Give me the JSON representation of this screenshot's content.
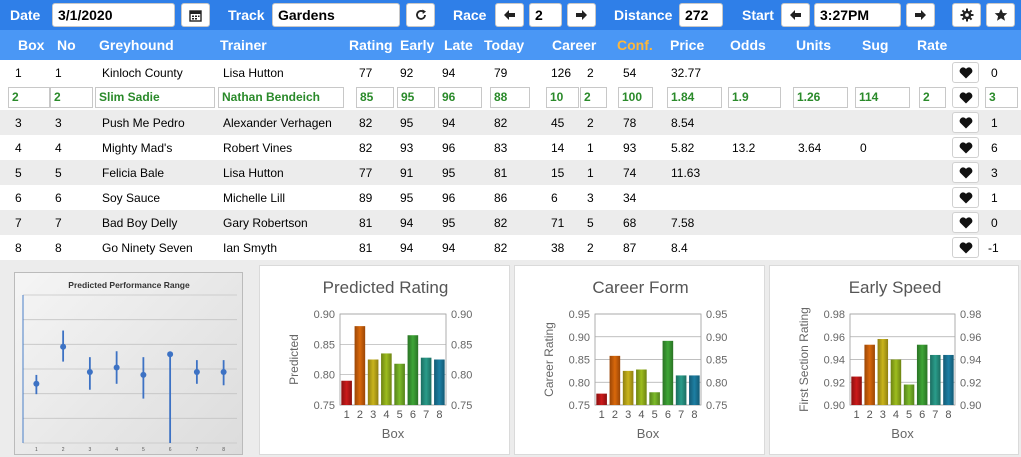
{
  "topbar": {
    "date_label": "Date",
    "date_value": "3/1/2020",
    "calendar_icon": "calendar-icon",
    "track_label": "Track",
    "track_value": "Gardens",
    "refresh_icon": "refresh-icon",
    "race_label": "Race",
    "race_value": "2",
    "distance_label": "Distance",
    "distance_value": "272",
    "start_label": "Start",
    "start_value": "3:27PM",
    "settings_icon": "gear-icon",
    "favorite_icon": "star-icon"
  },
  "columns": [
    "Box",
    "No",
    "Greyhound",
    "Trainer",
    "Rating",
    "Early",
    "Late",
    "Today",
    "Career",
    "Conf.",
    "Price",
    "Odds",
    "Units",
    "Sug",
    "Rate"
  ],
  "rows": [
    {
      "box": "1",
      "no": "1",
      "greyhound": "Kinloch County",
      "trainer": "Lisa Hutton",
      "rating": "77",
      "early": "92",
      "late": "94",
      "today": "79",
      "career": "126",
      "career2": "2",
      "conf": "54",
      "price": "32.77",
      "odds": "",
      "units": "",
      "sug": "",
      "rate": "",
      "count": "0"
    },
    {
      "box": "2",
      "no": "2",
      "greyhound": "Slim Sadie",
      "trainer": "Nathan Bendeich",
      "rating": "85",
      "early": "95",
      "late": "96",
      "today": "88",
      "career": "10",
      "career2": "2",
      "conf": "100",
      "price": "1.84",
      "odds": "1.9",
      "units": "1.26",
      "sug": "114",
      "rate": "2",
      "count": "3"
    },
    {
      "box": "3",
      "no": "3",
      "greyhound": "Push Me Pedro",
      "trainer": "Alexander Verhagen",
      "rating": "82",
      "early": "95",
      "late": "94",
      "today": "82",
      "career": "45",
      "career2": "2",
      "conf": "78",
      "price": "8.54",
      "odds": "",
      "units": "",
      "sug": "",
      "rate": "",
      "count": "1"
    },
    {
      "box": "4",
      "no": "4",
      "greyhound": "Mighty Mad's",
      "trainer": "Robert Vines",
      "rating": "82",
      "early": "93",
      "late": "96",
      "today": "83",
      "career": "14",
      "career2": "1",
      "conf": "93",
      "price": "5.82",
      "odds": "13.2",
      "units": "3.64",
      "sug": "0",
      "rate": "",
      "count": "6"
    },
    {
      "box": "5",
      "no": "5",
      "greyhound": "Felicia Bale",
      "trainer": "Lisa Hutton",
      "rating": "77",
      "early": "91",
      "late": "95",
      "today": "81",
      "career": "15",
      "career2": "1",
      "conf": "74",
      "price": "11.63",
      "odds": "",
      "units": "",
      "sug": "",
      "rate": "",
      "count": "3"
    },
    {
      "box": "6",
      "no": "6",
      "greyhound": "Soy Sauce",
      "trainer": "Michelle Lill",
      "rating": "89",
      "early": "95",
      "late": "96",
      "today": "86",
      "career": "6",
      "career2": "3",
      "conf": "34",
      "price": "",
      "odds": "",
      "units": "",
      "sug": "",
      "rate": "",
      "count": "1"
    },
    {
      "box": "7",
      "no": "7",
      "greyhound": "Bad Boy Delly",
      "trainer": "Gary Robertson",
      "rating": "81",
      "early": "94",
      "late": "95",
      "today": "82",
      "career": "71",
      "career2": "5",
      "conf": "68",
      "price": "7.58",
      "odds": "",
      "units": "",
      "sug": "",
      "rate": "",
      "count": "0"
    },
    {
      "box": "8",
      "no": "8",
      "greyhound": "Go Ninety Seven",
      "trainer": "Ian Smyth",
      "rating": "81",
      "early": "94",
      "late": "94",
      "today": "82",
      "career": "38",
      "career2": "2",
      "conf": "87",
      "price": "8.4",
      "odds": "",
      "units": "",
      "sug": "",
      "rate": "",
      "count": "-1"
    }
  ],
  "heart_icon": "heart-icon",
  "colors": {
    "topbar": "#2f7fe8",
    "header": "#4a97f5",
    "conf_header": "#ffb739",
    "selected_text": "#2a8a2a"
  },
  "chart_data": [
    {
      "type": "scatter",
      "title": "Predicted Performance Range",
      "categories": [
        "1",
        "2",
        "3",
        "4",
        "5",
        "6",
        "7",
        "8"
      ],
      "values": [
        0.4,
        0.65,
        0.48,
        0.51,
        0.46,
        0.6,
        0.48,
        0.48
      ],
      "range_low": [
        0.33,
        0.55,
        0.36,
        0.4,
        0.3,
        0.0,
        0.4,
        0.39
      ],
      "range_high": [
        0.46,
        0.76,
        0.58,
        0.62,
        0.58,
        0.6,
        0.56,
        0.56
      ],
      "ylim": [
        0,
        1
      ]
    },
    {
      "type": "bar",
      "title": "Predicted Rating",
      "categories": [
        "1",
        "2",
        "3",
        "4",
        "5",
        "6",
        "7",
        "8"
      ],
      "values": [
        0.79,
        0.88,
        0.825,
        0.835,
        0.818,
        0.865,
        0.828,
        0.825
      ],
      "xlabel": "Box",
      "ylabel": "Predicted",
      "ylim": [
        0.75,
        0.9
      ],
      "yticks": [
        "0.75",
        "0.80",
        "0.85",
        "0.90"
      ]
    },
    {
      "type": "bar",
      "title": "Career Form",
      "categories": [
        "1",
        "2",
        "3",
        "4",
        "5",
        "6",
        "7",
        "8"
      ],
      "values": [
        0.775,
        0.858,
        0.825,
        0.828,
        0.778,
        0.891,
        0.815,
        0.815
      ],
      "xlabel": "Box",
      "ylabel": "Career Rating",
      "ylim": [
        0.75,
        0.95
      ],
      "yticks": [
        "0.75",
        "0.80",
        "0.85",
        "0.90",
        "0.95"
      ]
    },
    {
      "type": "bar",
      "title": "Early Speed",
      "categories": [
        "1",
        "2",
        "3",
        "4",
        "5",
        "6",
        "7",
        "8"
      ],
      "values": [
        0.925,
        0.953,
        0.958,
        0.94,
        0.918,
        0.953,
        0.944,
        0.944
      ],
      "xlabel": "Box",
      "ylabel": "First Section Rating",
      "ylim": [
        0.9,
        0.98
      ],
      "yticks": [
        "0.90",
        "0.92",
        "0.94",
        "0.96",
        "0.98"
      ]
    }
  ]
}
